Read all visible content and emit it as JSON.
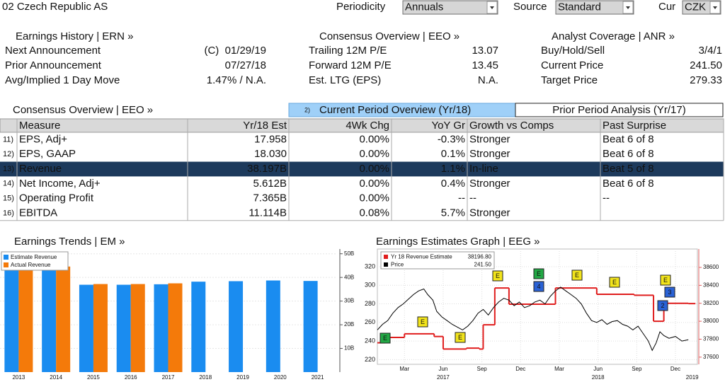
{
  "header": {
    "title": "02 Czech Republic AS",
    "periodicity_label": "Periodicity",
    "periodicity": "Annuals",
    "source_label": "Source",
    "source": "Standard",
    "cur_label": "Cur",
    "cur": "CZK"
  },
  "summary": [
    {
      "title": "Earnings History | ERN »",
      "rows": [
        [
          "Next Announcement",
          "(C)  01/29/19"
        ],
        [
          "Prior Announcement",
          "07/27/18"
        ],
        [
          "Avg/Implied 1 Day Move",
          "1.47% / N.A."
        ]
      ]
    },
    {
      "title": "Consensus Overview | EEO »",
      "rows": [
        [
          "Trailing 12M P/E",
          "13.07"
        ],
        [
          "Forward 12M P/E",
          "13.45"
        ],
        [
          "Est. LTG (EPS)",
          "N.A."
        ]
      ]
    },
    {
      "title": "Analyst Coverage | ANR »",
      "rows": [
        [
          "Buy/Hold/Sell",
          "3/4/1"
        ],
        [
          "Current Price",
          "241.50"
        ],
        [
          "Target Price",
          "279.33"
        ]
      ]
    }
  ],
  "consensus": {
    "title": "Consensus Overview | EEO »",
    "tabs": [
      {
        "num": "2)",
        "label": "Current Period Overview (Yr/18)",
        "selected": true
      },
      {
        "label": "Prior Period Analysis (Yr/17)"
      }
    ],
    "columns": [
      "Measure",
      "Yr/18 Est",
      "4Wk Chg",
      "YoY Gr",
      "Growth vs Comps",
      "Past Surprise"
    ],
    "rows": [
      {
        "num": "11)",
        "cells": [
          "EPS, Adj+",
          "17.958",
          "0.00%",
          "-0.3%",
          "Stronger",
          "Beat 6 of 8"
        ]
      },
      {
        "num": "12)",
        "cells": [
          "EPS, GAAP",
          "18.030",
          "0.00%",
          "0.1%",
          "Stronger",
          "Beat 6 of 8"
        ]
      },
      {
        "num": "13)",
        "cells": [
          "Revenue",
          "38.197B",
          "0.00%",
          "1.1%",
          "In-line",
          "Beat 5 of 8"
        ],
        "highlight": true
      },
      {
        "num": "14)",
        "cells": [
          "Net Income, Adj+",
          "5.612B",
          "0.00%",
          "0.4%",
          "Stronger",
          "Beat 6 of 8"
        ]
      },
      {
        "num": "15)",
        "cells": [
          "Operating Profit",
          "7.365B",
          "0.00%",
          "--",
          "--",
          "--"
        ]
      },
      {
        "num": "16)",
        "cells": [
          "EBITDA",
          "11.114B",
          "0.08%",
          "5.7%",
          "Stronger"
        ]
      }
    ]
  },
  "chart_data": [
    {
      "type": "bar",
      "title": "Earnings Trends | EM »",
      "categories": [
        "2013",
        "2014",
        "2015",
        "2016",
        "2017",
        "2018",
        "2019",
        "2020",
        "2021"
      ],
      "series": [
        {
          "name": "Estimate Revenue",
          "color": "#1a8cf0",
          "values": [
            43,
            43,
            36.9,
            36.9,
            37.1,
            38.2,
            38.4,
            38.7,
            38.5
          ]
        },
        {
          "name": "Actual Revenue",
          "color": "#f47a0a",
          "values": [
            43,
            44.6,
            37.2,
            37.2,
            37.5,
            null,
            null,
            null,
            null
          ]
        }
      ],
      "ylim": [
        0,
        52
      ],
      "yticks": [
        {
          "value": 10,
          "label": "10B"
        },
        {
          "value": 20,
          "label": "20B"
        },
        {
          "value": 30,
          "label": "30B"
        },
        {
          "value": 40,
          "label": "40B"
        },
        {
          "value": 50,
          "label": "50B"
        }
      ],
      "legend": "upper left"
    },
    {
      "type": "line",
      "title": "Earnings Estimates Graph | EEG »",
      "xlim": [
        0.4,
        25.2
      ],
      "xticks": [
        {
          "value": 2.5,
          "label": "Mar"
        },
        {
          "value": 5.5,
          "label": "Jun"
        },
        {
          "value": 8.5,
          "label": "Sep"
        },
        {
          "value": 11.5,
          "label": "Dec"
        },
        {
          "value": 14.5,
          "label": "Mar"
        },
        {
          "value": 17.5,
          "label": "Jun"
        },
        {
          "value": 20.5,
          "label": "Sep"
        },
        {
          "value": 23.5,
          "label": "Dec"
        }
      ],
      "year_ticks": [
        {
          "value": 5.5,
          "label": "2017"
        },
        {
          "value": 17.5,
          "label": "2018"
        },
        {
          "value": 24.8,
          "label": "2019"
        }
      ],
      "ylim": [
        215,
        339
      ],
      "yticks": [
        220,
        240,
        260,
        280,
        300,
        320
      ],
      "y2lim": [
        37520,
        38805
      ],
      "y2ticks": [
        37600,
        37800,
        38000,
        38200,
        38400,
        38600
      ],
      "legend": "upper left",
      "series": [
        {
          "name": "Yr 18 Revenue Estimate",
          "color": "#e01e1e",
          "axis": "y2",
          "step": true,
          "value_label": "38196.80",
          "x": [
            0.4,
            1.0,
            2.5,
            4.8,
            5.5,
            7.3,
            8.3,
            8.6,
            9.5,
            10.6,
            14.2,
            17.4,
            20.3,
            21.8,
            22.6,
            24.5
          ],
          "values": [
            37760,
            37820,
            37860,
            37830,
            37690,
            37700,
            37690,
            37960,
            38370,
            38190,
            38370,
            38300,
            38290,
            38000,
            38200,
            38196.8
          ]
        },
        {
          "name": "Price",
          "color": "#000000",
          "value_label": "241.50",
          "x": [
            0.4,
            0.8,
            1.2,
            1.6,
            2.0,
            2.4,
            2.8,
            3.2,
            3.6,
            4.0,
            4.3,
            4.7,
            5.0,
            5.4,
            5.8,
            6.2,
            6.6,
            7.0,
            7.4,
            7.8,
            8.2,
            8.6,
            9.0,
            9.4,
            9.8,
            10.2,
            10.6,
            11.0,
            11.4,
            11.8,
            12.2,
            12.6,
            13.0,
            13.4,
            13.8,
            14.2,
            14.6,
            15.0,
            15.4,
            15.8,
            16.2,
            16.6,
            17.0,
            17.4,
            17.8,
            18.2,
            18.6,
            19.0,
            19.4,
            19.8,
            20.2,
            20.6,
            21.0,
            21.4,
            21.7,
            22.0,
            22.3,
            22.6,
            23.0,
            23.5,
            24.0,
            24.5
          ],
          "values": [
            252,
            258,
            262,
            270,
            276,
            280,
            285,
            290,
            294,
            296,
            290,
            284,
            272,
            266,
            262,
            258,
            255,
            252,
            256,
            262,
            270,
            274,
            268,
            276,
            282,
            286,
            284,
            278,
            282,
            276,
            278,
            282,
            284,
            280,
            288,
            294,
            298,
            294,
            290,
            286,
            280,
            270,
            262,
            260,
            263,
            258,
            261,
            262,
            258,
            256,
            252,
            256,
            248,
            240,
            230,
            238,
            250,
            246,
            243,
            245,
            240,
            241.5
          ]
        }
      ],
      "event_markers": [
        {
          "label": "E",
          "color": "#22a845"
        },
        {
          "label": "E",
          "color": "#f2e41c"
        },
        {
          "label": "E",
          "color": "#f2e41c"
        },
        {
          "label": "E",
          "color": "#f2e41c"
        },
        {
          "label": "E",
          "color": "#22a845"
        },
        {
          "label": "4",
          "color": "#2a62d6"
        },
        {
          "label": "E",
          "color": "#f2e41c"
        },
        {
          "label": "E",
          "color": "#f2e41c"
        },
        {
          "label": "E",
          "color": "#f2e41c"
        },
        {
          "label": "3",
          "color": "#2a62d6"
        },
        {
          "label": "2",
          "color": "#2a62d6"
        }
      ]
    }
  ]
}
